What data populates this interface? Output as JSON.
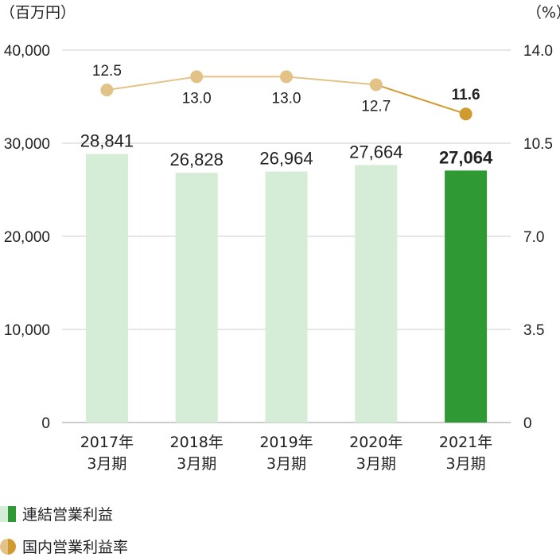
{
  "chart_data": {
    "type": "bar",
    "categories": [
      [
        "2017年",
        "3月期"
      ],
      [
        "2018年",
        "3月期"
      ],
      [
        "2019年",
        "3月期"
      ],
      [
        "2020年",
        "3月期"
      ],
      [
        "2021年",
        "3月期"
      ]
    ],
    "left_unit": "（百万円）",
    "right_unit": "（%）",
    "left_axis": {
      "ylim": [
        0,
        40000
      ],
      "ticks": [
        "0",
        "10,000",
        "20,000",
        "30,000",
        "40,000"
      ]
    },
    "right_axis": {
      "ylim": [
        0,
        14.0
      ],
      "ticks": [
        "0",
        "3.5",
        "7.0",
        "10.5",
        "14.0"
      ]
    },
    "grid": true,
    "series": [
      {
        "name": "連結営業利益",
        "type": "bar",
        "axis": "left",
        "values": [
          28841,
          26828,
          26964,
          27664,
          27064
        ],
        "labels": [
          "28,841",
          "26,828",
          "26,964",
          "27,664",
          "27,064"
        ],
        "highlight_index": 4
      },
      {
        "name": "国内営業利益率",
        "type": "line",
        "axis": "right",
        "values": [
          12.5,
          13.0,
          13.0,
          12.7,
          11.6
        ],
        "labels": [
          "12.5",
          "13.0",
          "13.0",
          "12.7",
          "11.6"
        ],
        "highlight_index": 4
      }
    ],
    "colors": {
      "bar": "#d5ecd6",
      "bar_highlight": "#2f9a33",
      "line": "#e3c287",
      "line_highlight": "#d19a2e",
      "grid": "#cccccc"
    },
    "legend_position": "bottom-left"
  }
}
